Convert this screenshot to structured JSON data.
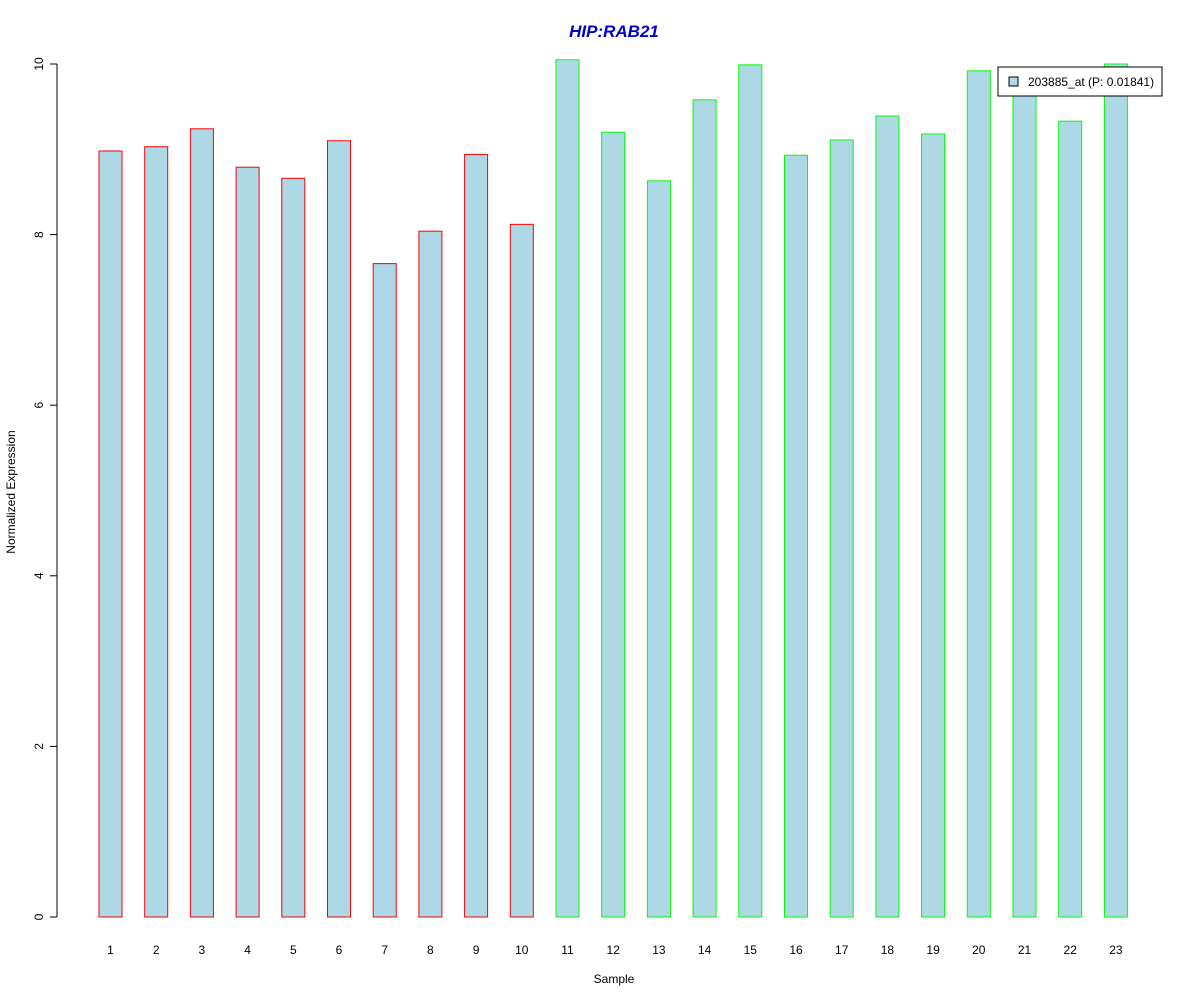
{
  "chart_data": {
    "type": "bar",
    "title": "HIP:RAB21",
    "xlabel": "Sample",
    "ylabel": "Normalized Expression",
    "ylim": [
      0,
      10
    ],
    "yticks": [
      "0",
      "2",
      "4",
      "6",
      "8",
      "10"
    ],
    "categories": [
      "1",
      "2",
      "3",
      "4",
      "5",
      "6",
      "7",
      "8",
      "9",
      "10",
      "11",
      "12",
      "13",
      "14",
      "15",
      "16",
      "17",
      "18",
      "19",
      "20",
      "21",
      "22",
      "23"
    ],
    "series": [
      {
        "name": "203885_at (P: 0.01841)",
        "values": [
          8.98,
          9.03,
          9.24,
          8.79,
          8.66,
          9.1,
          7.66,
          8.04,
          8.94,
          8.12,
          10.05,
          9.2,
          8.63,
          9.58,
          9.99,
          8.93,
          9.11,
          9.39,
          9.18,
          9.92,
          9.67,
          9.33,
          10.0
        ],
        "groups": [
          "red",
          "red",
          "red",
          "red",
          "red",
          "red",
          "red",
          "red",
          "red",
          "red",
          "green",
          "green",
          "green",
          "green",
          "green",
          "green",
          "green",
          "green",
          "green",
          "green",
          "green",
          "green",
          "green"
        ]
      }
    ],
    "grid": false,
    "legend_position": "top-right",
    "colors": {
      "bar_fill": "#add8e6",
      "group_border": {
        "red": "#ff0000",
        "green": "#00ff00"
      },
      "title": "#0000cd"
    }
  }
}
